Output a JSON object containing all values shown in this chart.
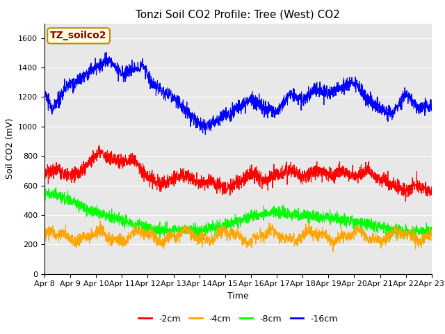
{
  "title": "Tonzi Soil CO2 Profile: Tree (West) CO2",
  "ylabel": "Soil CO2 (mV)",
  "xlabel": "Time",
  "watermark": "TZ_soilco2",
  "ylim": [
    0,
    1700
  ],
  "yticks": [
    0,
    200,
    400,
    600,
    800,
    1000,
    1200,
    1400,
    1600
  ],
  "x_labels": [
    "Apr 8",
    "Apr 9",
    "Apr 10",
    "Apr 11",
    "Apr 12",
    "Apr 13",
    "Apr 14",
    "Apr 15",
    "Apr 16",
    "Apr 17",
    "Apr 18",
    "Apr 19",
    "Apr 20",
    "Apr 21",
    "Apr 22",
    "Apr 23"
  ],
  "series_colors": [
    "red",
    "orange",
    "lime",
    "blue"
  ],
  "series_labels": [
    "-2cm",
    "-4cm",
    "-8cm",
    "-16cm"
  ],
  "figure_facecolor": "#ffffff",
  "plot_bg_color": "#e8e8e8",
  "title_fontsize": 11,
  "axis_fontsize": 9,
  "legend_fontsize": 9,
  "watermark_fontsize": 10,
  "tick_fontsize": 8
}
